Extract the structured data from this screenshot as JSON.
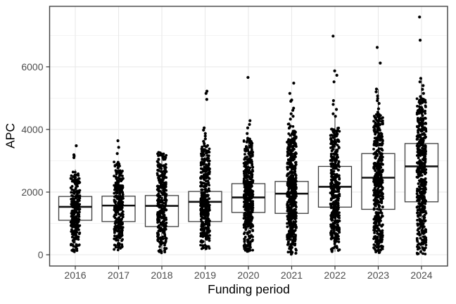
{
  "chart_data": {
    "type": "boxplot",
    "title": "",
    "xlabel": "Funding period",
    "ylabel": "APC",
    "x_categories": [
      "2016",
      "2017",
      "2018",
      "2019",
      "2020",
      "2021",
      "2022",
      "2023",
      "2024"
    ],
    "y_ticks": [
      0,
      2000,
      4000,
      6000
    ],
    "y_minor_gridlines": [
      1000,
      3000,
      5000,
      7000
    ],
    "ylim": [
      -380,
      7950
    ],
    "grid": true,
    "legend": "none",
    "points_style": "dense-jitter-overlay",
    "series": [
      {
        "year": "2016",
        "whisker_low": 90,
        "q1": 1100,
        "median": 1530,
        "q3": 1860,
        "whisker_high": 2720,
        "points_min": 90,
        "points_dense_max": 2670,
        "n_points": 260,
        "upper_points": [
          3480,
          3190,
          3150,
          3100
        ]
      },
      {
        "year": "2017",
        "whisker_low": 110,
        "q1": 1060,
        "median": 1570,
        "q3": 1870,
        "whisker_high": 2950,
        "points_min": 110,
        "points_dense_max": 3000,
        "n_points": 280,
        "upper_points": [
          3640,
          3430,
          3230
        ]
      },
      {
        "year": "2018",
        "whisker_low": 45,
        "q1": 900,
        "median": 1560,
        "q3": 1890,
        "whisker_high": 3265,
        "points_min": 45,
        "points_dense_max": 3270,
        "n_points": 320,
        "upper_points": []
      },
      {
        "year": "2019",
        "whisker_low": 135,
        "q1": 1060,
        "median": 1690,
        "q3": 2020,
        "whisker_high": 3460,
        "points_min": 135,
        "points_dense_max": 3490,
        "n_points": 380,
        "upper_points": [
          5220,
          5150,
          4960,
          4050,
          3980,
          3870,
          3790,
          3700,
          3620,
          3550
        ]
      },
      {
        "year": "2020",
        "whisker_low": 95,
        "q1": 1350,
        "median": 1830,
        "q3": 2270,
        "whisker_high": 3650,
        "points_min": 95,
        "points_dense_max": 3700,
        "n_points": 440,
        "upper_points": [
          5660,
          4280,
          4160,
          4050,
          3870,
          3720
        ]
      },
      {
        "year": "2021",
        "whisker_low": 10,
        "q1": 1320,
        "median": 1950,
        "q3": 2340,
        "whisker_high": 3860,
        "points_min": 10,
        "points_dense_max": 4200,
        "n_points": 500,
        "upper_points": [
          5480,
          5150,
          4940,
          4900,
          4680,
          4610,
          4500,
          4420,
          4330
        ]
      },
      {
        "year": "2022",
        "whisker_low": 95,
        "q1": 1520,
        "median": 2170,
        "q3": 2820,
        "whisker_high": 4390,
        "points_min": 95,
        "points_dense_max": 4050,
        "n_points": 420,
        "upper_points": [
          6980,
          5870,
          5730,
          5520,
          4920,
          4800,
          4640,
          4500,
          4420
        ]
      },
      {
        "year": "2023",
        "whisker_low": 60,
        "q1": 1450,
        "median": 2460,
        "q3": 3230,
        "whisker_high": 5290,
        "points_min": 60,
        "points_dense_max": 4500,
        "n_points": 450,
        "upper_points": [
          6620,
          6120,
          5290,
          5200,
          5070,
          4990,
          4920,
          4830,
          4660,
          4550
        ]
      },
      {
        "year": "2024",
        "whisker_low": 20,
        "q1": 1690,
        "median": 2820,
        "q3": 3550,
        "whisker_high": 5630,
        "points_min": 20,
        "points_dense_max": 5000,
        "n_points": 480,
        "upper_points": [
          7590,
          6850,
          5630,
          5520,
          5400,
          5280,
          5150,
          5050
        ]
      }
    ]
  },
  "style": {
    "point_color": "#000000",
    "box_border_color": "#3d3d3d",
    "median_color": "#111111",
    "panel_border_color": "#404040",
    "grid_major_color": "#e9e9e9",
    "grid_minor_color": "#f2f2f2",
    "tick_color": "#333333",
    "axis_text_color": "#4d4d4d",
    "axis_title_color": "#000000",
    "panel_bg": "#ffffff"
  }
}
